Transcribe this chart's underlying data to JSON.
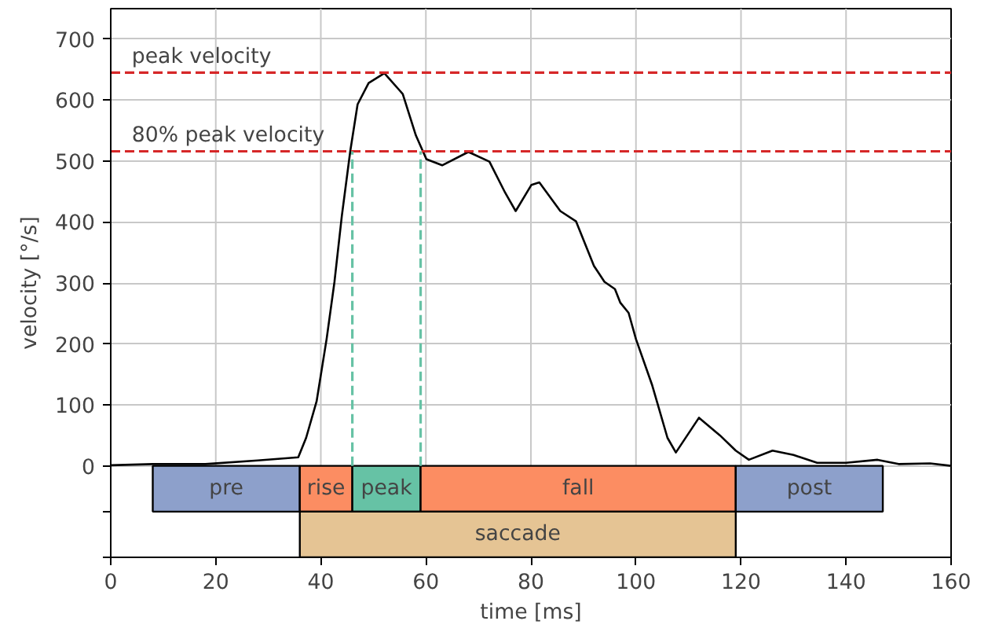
{
  "chart_data": {
    "type": "line",
    "xlabel": "time [ms]",
    "ylabel": "velocity [°/s]",
    "xlim": [
      0,
      160
    ],
    "ylim": [
      -150,
      750
    ],
    "xticks": [
      0,
      20,
      40,
      60,
      80,
      100,
      120,
      140,
      160
    ],
    "yticks": [
      {
        "value": -150,
        "label": null
      },
      {
        "value": -75,
        "label": null
      },
      0,
      100,
      200,
      300,
      400,
      500,
      600,
      700
    ],
    "grid": true,
    "line_style": "solid",
    "marker": "none",
    "series": [
      {
        "color": "#000000",
        "x": [
          0,
          8,
          18,
          28,
          35.7,
          37.2,
          39.2,
          41.1,
          42.6,
          44,
          45.6,
          47,
          49.1,
          52.1,
          55.6,
          58.1,
          60.1,
          63.1,
          68.1,
          72.1,
          75.1,
          77.1,
          80.1,
          81.6,
          85.6,
          88.6,
          92,
          94,
          96,
          97,
          98.6,
          100,
          103.1,
          106,
          107.6,
          112,
          116,
          119,
          121.5,
          126,
          130,
          134.5,
          140,
          146,
          150,
          156,
          160
        ],
        "values": [
          1,
          3,
          3,
          9,
          14,
          46,
          106,
          208,
          302,
          410,
          516,
          593,
          628,
          644,
          610,
          542,
          503,
          493,
          515,
          499,
          448,
          418,
          461,
          465,
          418,
          401,
          328,
          302,
          290,
          268,
          251,
          208,
          132,
          46,
          22,
          79,
          50,
          25,
          10,
          25,
          18,
          5,
          5,
          10,
          3,
          4,
          0
        ]
      }
    ],
    "ref_lines": [
      {
        "axis": "y",
        "value": 645,
        "label": "peak velocity",
        "color": "#d62728",
        "line_style": "dashed"
      },
      {
        "axis": "y",
        "value": 516,
        "label": "80% peak velocity",
        "color": "#d62728",
        "line_style": "dashed"
      },
      {
        "axis": "x",
        "value": 46,
        "label": null,
        "color": "#66c2a5",
        "line_style": "dashed"
      },
      {
        "axis": "x",
        "value": 59,
        "label": null,
        "color": "#66c2a5",
        "line_style": "dashed"
      }
    ],
    "bands": [
      {
        "axis": "x",
        "from": 8,
        "to": 36,
        "label": "pre",
        "color": "#8da0cb"
      },
      {
        "axis": "x",
        "from": 36,
        "to": 46,
        "label": "rise",
        "color": "#fc8d62"
      },
      {
        "axis": "x",
        "from": 46,
        "to": 59,
        "label": "peak",
        "color": "#66c2a5"
      },
      {
        "axis": "x",
        "from": 59,
        "to": 119,
        "label": "fall",
        "color": "#fc8d62"
      },
      {
        "axis": "x",
        "from": 119,
        "to": 147,
        "label": "post",
        "color": "#8da0cb"
      },
      {
        "axis": "x",
        "from": 36,
        "to": 119,
        "label": "saccade",
        "color": "#e5c494"
      }
    ]
  }
}
